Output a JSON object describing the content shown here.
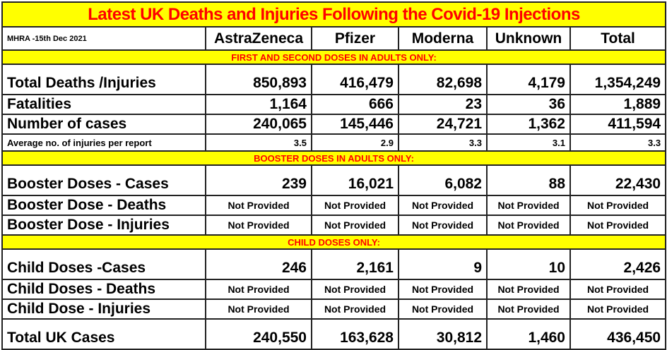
{
  "title": "Latest UK Deaths and Injuries Following the Covid-19 Injections",
  "source": "MHRA -15th Dec 2021",
  "columns": [
    "AstraZeneca",
    "Pfizer",
    "Moderna",
    "Unknown",
    "Total"
  ],
  "sections": [
    {
      "heading": "FIRST AND SECOND DOSES IN ADULTS ONLY:",
      "rows": [
        {
          "label": "Total Deaths /Injuries",
          "values": [
            "850,893",
            "416,479",
            "82,698",
            "4,179",
            "1,354,249"
          ]
        },
        {
          "label": "Fatalities",
          "values": [
            "1,164",
            "666",
            "23",
            "36",
            "1,889"
          ]
        },
        {
          "label": "Number of cases",
          "values": [
            "240,065",
            "145,446",
            "24,721",
            "1,362",
            "411,594"
          ]
        },
        {
          "label": "Average no. of injuries per report",
          "values": [
            "3.5",
            "2.9",
            "3.3",
            "3.1",
            "3.3"
          ]
        }
      ]
    },
    {
      "heading": "BOOSTER DOSES IN ADULTS ONLY:",
      "rows": [
        {
          "label": "Booster Doses - Cases",
          "values": [
            "239",
            "16,021",
            "6,082",
            "88",
            "22,430"
          ]
        },
        {
          "label": "Booster Dose - Deaths",
          "values": [
            "Not Provided",
            "Not Provided",
            "Not Provided",
            "Not Provided",
            "Not Provided"
          ]
        },
        {
          "label": "Booster Dose - Injuries",
          "values": [
            "Not Provided",
            "Not Provided",
            "Not Provided",
            "Not Provided",
            "Not Provided"
          ]
        }
      ]
    },
    {
      "heading": "CHILD DOSES ONLY:",
      "rows": [
        {
          "label": "Child Doses -Cases",
          "values": [
            "246",
            "2,161",
            "9",
            "10",
            "2,426"
          ]
        },
        {
          "label": "Child Doses - Deaths",
          "values": [
            "Not Provided",
            "Not Provided",
            "Not Provided",
            "Not Provided",
            "Not Provided"
          ]
        },
        {
          "label": "Child Dose - Injuries",
          "values": [
            "Not Provided",
            "Not Provided",
            "Not Provided",
            "Not Provided",
            "Not Provided"
          ]
        }
      ]
    }
  ],
  "total_row": {
    "label": "Total UK Cases",
    "values": [
      "240,550",
      "163,628",
      "30,812",
      "1,460",
      "436,450"
    ]
  },
  "colors": {
    "highlight": "#ffff00",
    "heading_text": "#ff0000"
  }
}
